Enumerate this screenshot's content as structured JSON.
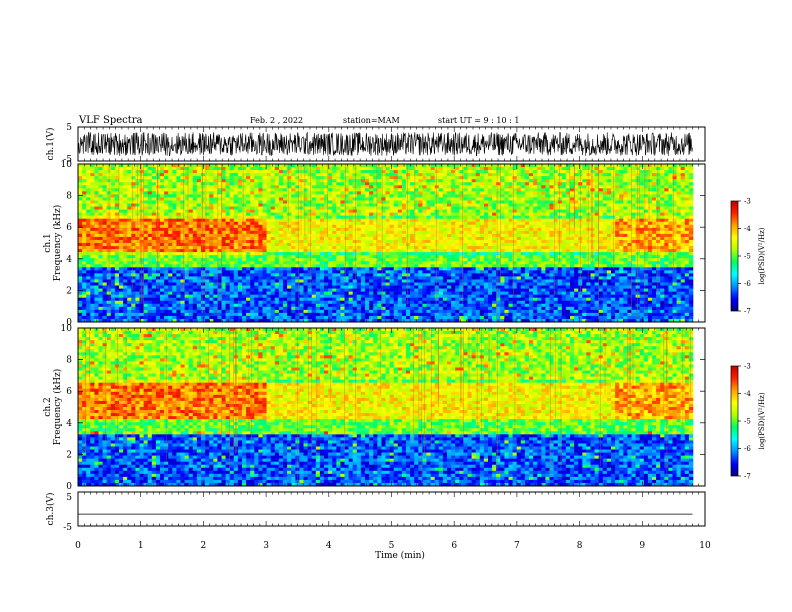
{
  "header": {
    "title": "VLF Spectra",
    "date": "Feb. 2 , 2022",
    "station": "station=MAM",
    "start": "start UT = 9 : 10 : 1"
  },
  "chart_data": [
    {
      "type": "line",
      "title": "VLF Spectra",
      "ylabel": "ch.1(V)",
      "ylim": [
        -5,
        5
      ],
      "yticks": [
        "5",
        "-5"
      ],
      "xlim": [
        0,
        10
      ],
      "series": [
        {
          "values_range": [
            -3.5,
            3.5
          ],
          "x_range": [
            0,
            9.8
          ]
        }
      ]
    },
    {
      "type": "heatmap",
      "ylabel": "ch.1 Frequency (kHz)",
      "ylim": [
        0,
        10
      ],
      "yticks": [
        "0",
        "2",
        "4",
        "6",
        "8",
        "10"
      ],
      "xlim": [
        0,
        10
      ],
      "colorbar": {
        "label": "log(PSD)(V²/Hz)",
        "range": [
          -7,
          -3
        ],
        "ticks": [
          "-3",
          "-4",
          "-5",
          "-6",
          "-7"
        ]
      },
      "bands": [
        {
          "freq_range": [
            0,
            3.5
          ],
          "level": -6.3
        },
        {
          "freq_range": [
            3.5,
            4.5
          ],
          "level": -5.0
        },
        {
          "freq_range": [
            4.5,
            6.5
          ],
          "level": -4.1
        },
        {
          "freq_range": [
            6.5,
            10
          ],
          "level": -4.8
        }
      ]
    },
    {
      "type": "heatmap",
      "ylabel": "ch.2 Frequency (kHz)",
      "ylim": [
        0,
        10
      ],
      "yticks": [
        "0",
        "2",
        "4",
        "6",
        "8",
        "10"
      ],
      "xlim": [
        0,
        10
      ],
      "colorbar": {
        "label": "log(PSD)(V²/Hz)",
        "range": [
          -7,
          -3
        ],
        "ticks": [
          "-3",
          "-4",
          "-5",
          "-6",
          "-7"
        ]
      },
      "bands": [
        {
          "freq_range": [
            0,
            3.3
          ],
          "level": -6.3
        },
        {
          "freq_range": [
            3.3,
            4.3
          ],
          "level": -5.0
        },
        {
          "freq_range": [
            4.3,
            6.5
          ],
          "level": -4.1
        },
        {
          "freq_range": [
            6.5,
            10
          ],
          "level": -4.8
        }
      ]
    },
    {
      "type": "line",
      "ylabel": "ch.3(V)",
      "ylim": [
        -5,
        5
      ],
      "yticks": [
        "5",
        "-5"
      ],
      "xlabel": "Time (min)",
      "xlim": [
        0,
        10
      ],
      "xticks": [
        "0",
        "1",
        "2",
        "3",
        "4",
        "5",
        "6",
        "7",
        "8",
        "9",
        "10"
      ],
      "series": [
        {
          "x": [
            0,
            9.8
          ],
          "y": [
            -1.5,
            -1.5
          ]
        }
      ]
    }
  ],
  "colors": {
    "colormap": [
      "#00007a",
      "#0000ff",
      "#0090ff",
      "#00ffff",
      "#00ff60",
      "#b0ff00",
      "#ffff00",
      "#ffa000",
      "#ff2000",
      "#c00000"
    ]
  }
}
